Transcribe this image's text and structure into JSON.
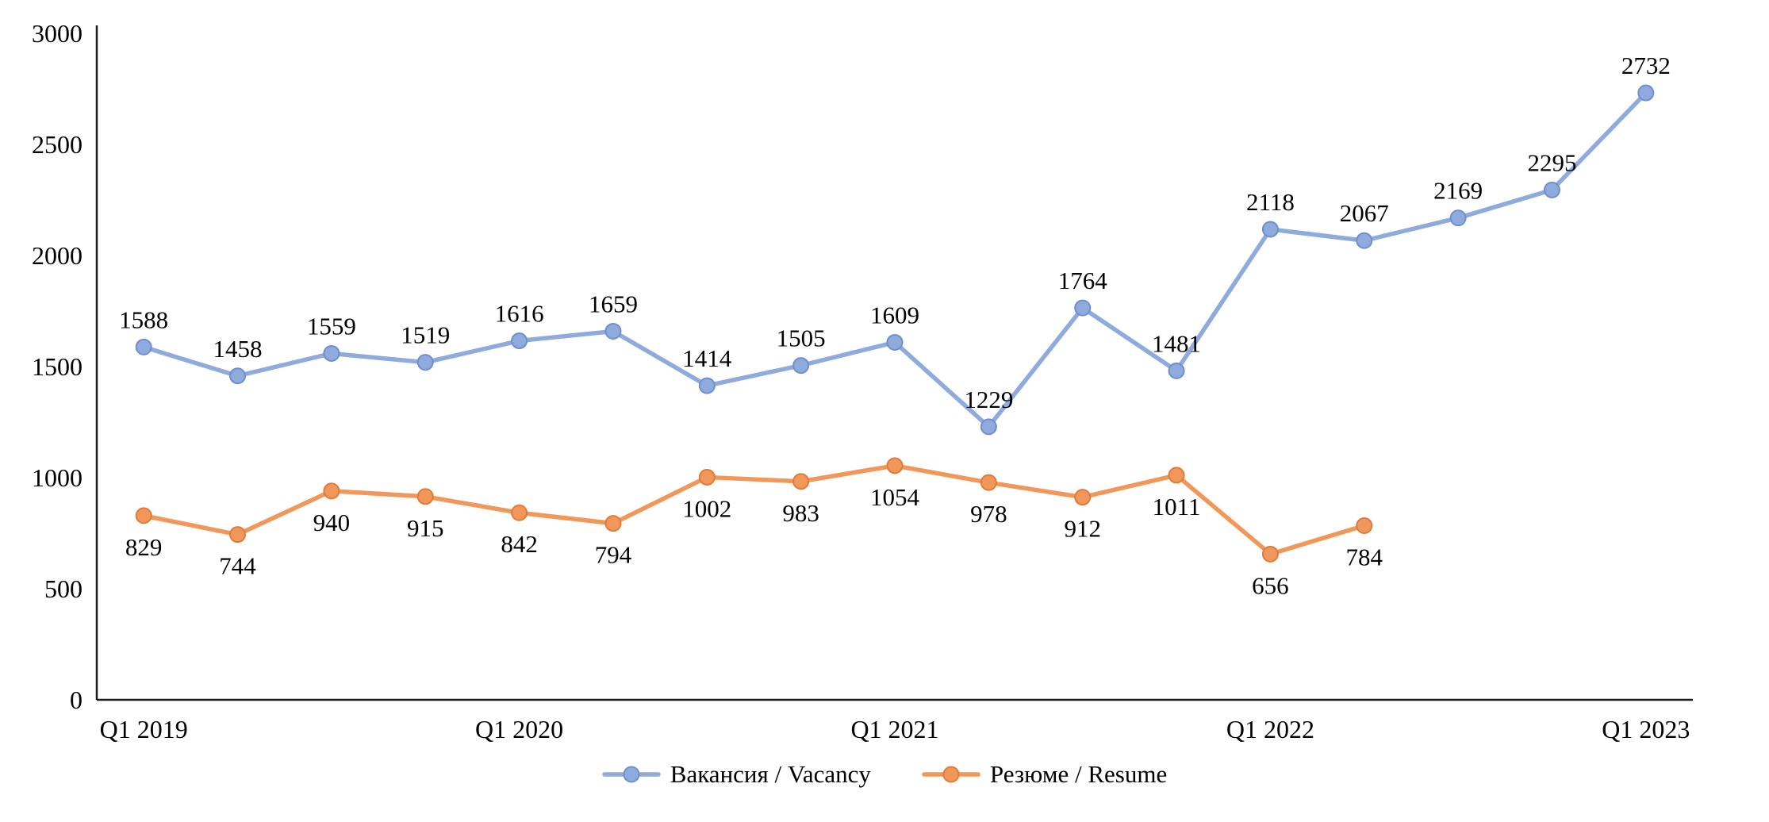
{
  "page": {
    "background_color": "#ffffff",
    "text_color": "#000000"
  },
  "chart_data": {
    "type": "line",
    "title": "",
    "xlabel": "",
    "ylabel": "",
    "ylim": [
      0,
      3000
    ],
    "y_ticks": [
      0,
      500,
      1000,
      1500,
      2000,
      2500,
      3000
    ],
    "n_points": 17,
    "grid": false,
    "legend_position": "bottom",
    "axis_color": "#1a1a1a",
    "label_color": "#000000",
    "x_tick_labels": [
      {
        "label": "Q1 2019",
        "index": 0
      },
      {
        "label": "Q1 2020",
        "index": 4
      },
      {
        "label": "Q1 2021",
        "index": 8
      },
      {
        "label": "Q1 2022",
        "index": 12
      },
      {
        "label": "Q1 2023",
        "index": 16
      }
    ],
    "series": [
      {
        "name": "Вакансия / Vacancy",
        "color": "#8FAADC",
        "marker_stroke": "#6F8FCC",
        "label_position": "above",
        "values": [
          1588,
          1458,
          1559,
          1519,
          1616,
          1659,
          1414,
          1505,
          1609,
          1229,
          1764,
          1481,
          2118,
          2067,
          2169,
          2295,
          2732
        ]
      },
      {
        "name": "Резюме / Resume",
        "color": "#F1975A",
        "marker_stroke": "#E07B39",
        "label_position": "below",
        "values": [
          829,
          744,
          940,
          915,
          842,
          794,
          1002,
          983,
          1054,
          978,
          912,
          1011,
          656,
          784
        ]
      }
    ]
  }
}
